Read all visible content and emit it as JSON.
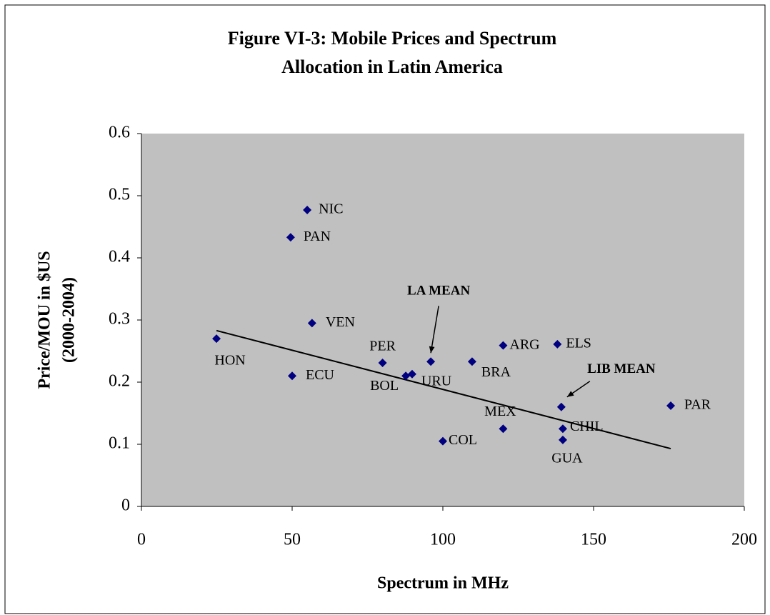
{
  "chart_data": {
    "type": "scatter",
    "title": [
      "Figure VI-3: Mobile Prices and Spectrum",
      "Allocation in Latin America"
    ],
    "xlabel": "Spectrum in MHz",
    "ylabel": [
      "Price/MOU in $US",
      "(2000-2004)"
    ],
    "xlim": [
      0,
      200
    ],
    "ylim": [
      0,
      0.6
    ],
    "xticks": [
      0,
      50,
      100,
      150,
      200
    ],
    "yticks": [
      0,
      0.1,
      0.2,
      0.3,
      0.4,
      0.5,
      0.6
    ],
    "grid": false,
    "series": [
      {
        "color": "#000080",
        "labels": [
          "NIC",
          "PAN",
          "VEN",
          "HON",
          "ECU",
          "PER",
          "BOL",
          "URU",
          "LA MEAN",
          "BRA",
          "ARG",
          "ELS",
          "LIB MEAN",
          "PAR",
          "MEX",
          "CHIL",
          "GUA",
          "COL"
        ],
        "x": [
          55,
          49.5,
          56.6,
          24.9,
          50,
          80,
          87.7,
          89.8,
          96,
          109.7,
          120,
          138,
          139.3,
          175.6,
          120,
          139.8,
          139.8,
          100
        ],
        "values": [
          0.477,
          0.433,
          0.295,
          0.27,
          0.21,
          0.231,
          0.21,
          0.213,
          0.233,
          0.233,
          0.259,
          0.261,
          0.16,
          0.162,
          0.125,
          0.125,
          0.107,
          0.105
        ]
      }
    ],
    "trendline": {
      "x": [
        24.9,
        175.6
      ],
      "values": [
        0.283,
        0.093
      ]
    },
    "plot_background": "#c0c0c0"
  }
}
